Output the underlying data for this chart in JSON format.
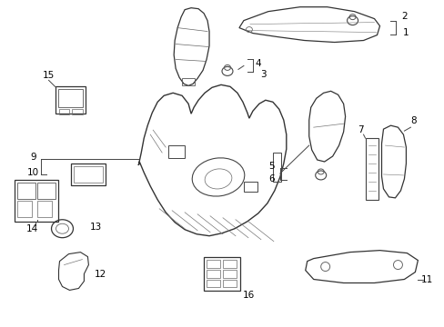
{
  "background_color": "#ffffff",
  "fig_width": 4.89,
  "fig_height": 3.6,
  "dpi": 100,
  "lc": "#444444",
  "font_size": 7.5
}
